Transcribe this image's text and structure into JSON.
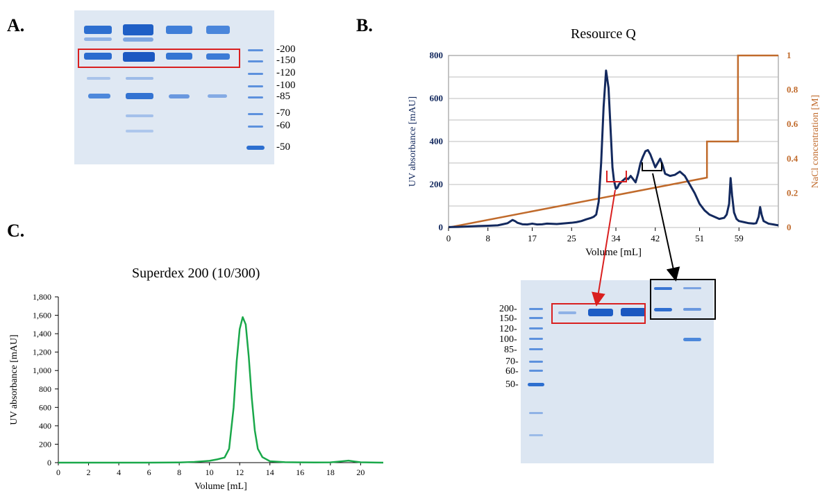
{
  "panel_labels": {
    "a": "A.",
    "b": "B.",
    "c": "C."
  },
  "gel_a": {
    "markers": [
      "-200",
      "-150",
      "-120",
      "-100",
      "-85",
      "-70",
      "-60",
      "-50"
    ]
  },
  "gel_b": {
    "markers": [
      "200-",
      "150-",
      "120-",
      "100-",
      "85-",
      "70-",
      "60-",
      "50-"
    ]
  },
  "colors": {
    "resource_q_line": "#13295e",
    "nacl_line": "#c06a2b",
    "superdex_line": "#1aa84a",
    "highlight_red": "#d91f1f",
    "highlight_black": "#000000",
    "band_blue": "#2a6fcf"
  },
  "chart_data": [
    {
      "type": "line",
      "title": "Resource Q",
      "xlabel": "Volume [mL]",
      "ylabel": "UV absorbance [mAU]",
      "y2label": "NaCl concentration [M]",
      "xlim": [
        0,
        67
      ],
      "ylim": [
        0,
        800
      ],
      "y2lim": [
        0,
        1
      ],
      "xticks": [
        "0",
        "8",
        "17",
        "25",
        "34",
        "42",
        "51",
        "59"
      ],
      "yticks": [
        "0",
        "200",
        "400",
        "600",
        "800"
      ],
      "y2ticks": [
        "0",
        "0.2",
        "0.4",
        "0.6",
        "0.8",
        "1"
      ],
      "grid": true,
      "series": [
        {
          "axis": "left",
          "x": [
            0,
            2,
            4,
            6,
            8,
            10,
            11,
            12,
            13,
            13.5,
            14,
            15,
            16,
            17,
            18,
            19,
            20,
            22,
            24,
            25,
            26,
            27,
            28,
            29,
            29.5,
            30,
            30.5,
            31,
            31.5,
            32,
            32.5,
            33,
            33.3,
            33.6,
            34,
            34.3,
            34.6,
            35,
            35.5,
            36,
            36.5,
            37,
            38,
            38.5,
            39,
            39.5,
            40,
            40.5,
            41,
            41.5,
            42,
            42.5,
            43,
            43.5,
            44,
            45,
            46,
            47,
            47.5,
            48,
            49,
            50,
            51,
            52,
            53,
            54,
            55,
            56,
            56.5,
            57,
            57.3,
            57.6,
            58,
            58.5,
            59,
            60,
            61,
            62,
            62.5,
            63,
            63.3,
            63.6,
            64,
            65,
            66,
            67
          ],
          "y": [
            2,
            3,
            5,
            7,
            8,
            10,
            15,
            20,
            35,
            30,
            22,
            15,
            14,
            18,
            14,
            15,
            18,
            16,
            20,
            22,
            25,
            30,
            38,
            45,
            50,
            60,
            120,
            300,
            560,
            730,
            650,
            420,
            280,
            220,
            180,
            185,
            200,
            210,
            220,
            230,
            225,
            240,
            210,
            250,
            300,
            330,
            355,
            360,
            340,
            310,
            280,
            300,
            320,
            290,
            250,
            240,
            245,
            260,
            250,
            240,
            200,
            160,
            110,
            80,
            60,
            50,
            40,
            45,
            60,
            110,
            230,
            150,
            70,
            40,
            30,
            25,
            20,
            18,
            20,
            50,
            95,
            60,
            30,
            18,
            14,
            10
          ],
          "note": "UV trace"
        },
        {
          "axis": "right",
          "x": [
            0,
            52.5,
            52.5,
            58.8,
            58.8,
            67
          ],
          "y": [
            0,
            0.29,
            0.5,
            0.5,
            1.0,
            1.0
          ]
        }
      ]
    },
    {
      "type": "line",
      "title": "Superdex 200 (10/300)",
      "xlabel": "Volume [mL]",
      "ylabel": "UV absorbance [mAU]",
      "xlim": [
        0,
        21.5
      ],
      "ylim": [
        0,
        1800
      ],
      "xticks": [
        "0",
        "2",
        "4",
        "6",
        "8",
        "10",
        "12",
        "14",
        "16",
        "18",
        "20"
      ],
      "yticks": [
        "0",
        "200",
        "400",
        "600",
        "800",
        "1,000",
        "1,200",
        "1,400",
        "1,600",
        "1,800"
      ],
      "grid": false,
      "series": [
        {
          "x": [
            0,
            2,
            4,
            6,
            8,
            9,
            10,
            10.5,
            11,
            11.3,
            11.6,
            11.8,
            12.0,
            12.2,
            12.4,
            12.6,
            12.8,
            13.0,
            13.2,
            13.5,
            14,
            15,
            16,
            17,
            18,
            18.8,
            19.2,
            19.6,
            20,
            21,
            21.5
          ],
          "y": [
            0,
            0,
            0,
            0,
            2,
            8,
            20,
            35,
            55,
            150,
            600,
            1100,
            1450,
            1580,
            1500,
            1150,
            700,
            350,
            150,
            60,
            15,
            5,
            3,
            2,
            3,
            15,
            22,
            12,
            4,
            1,
            0
          ]
        }
      ]
    }
  ]
}
